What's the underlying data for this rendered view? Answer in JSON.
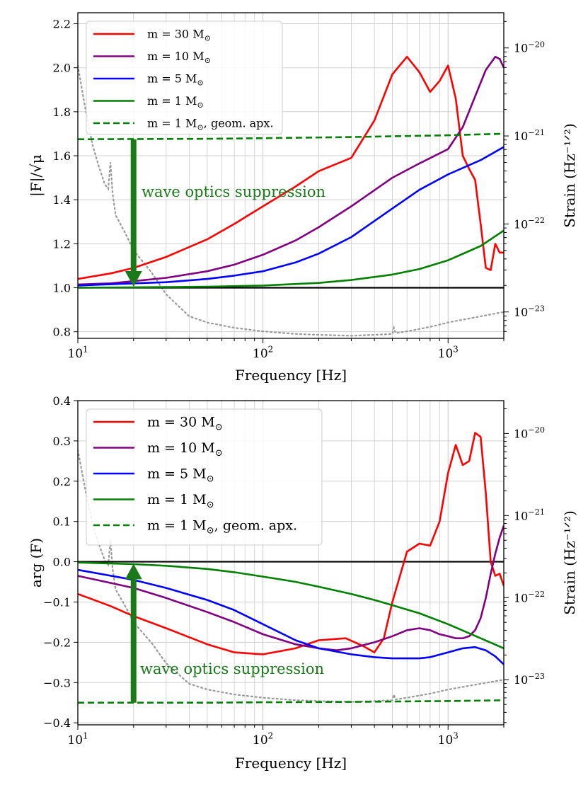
{
  "chart_data": [
    {
      "type": "line",
      "panel": "top",
      "xlabel": "Frequency [Hz]",
      "ylabel": "|F|/√μ",
      "ylabel_right": "Strain (Hz⁻¹ᐟ²)",
      "xscale": "log",
      "xlim": [
        10,
        2000
      ],
      "ylim": [
        0.77,
        2.25
      ],
      "right_ylim_log": [
        -23.3,
        -19.6
      ],
      "x_ticks": [
        {
          "v": 10,
          "base": "10",
          "exp": "1"
        },
        {
          "v": 100,
          "base": "10",
          "exp": "2"
        },
        {
          "v": 1000,
          "base": "10",
          "exp": "3"
        }
      ],
      "y_ticks": [
        {
          "v": 0.8,
          "label": "0.8"
        },
        {
          "v": 1.0,
          "label": "1.0"
        },
        {
          "v": 1.2,
          "label": "1.2"
        },
        {
          "v": 1.4,
          "label": "1.4"
        },
        {
          "v": 1.6,
          "label": "1.6"
        },
        {
          "v": 1.8,
          "label": "1.8"
        },
        {
          "v": 2.0,
          "label": "2.0"
        },
        {
          "v": 2.2,
          "label": "2.2"
        }
      ],
      "right_ticks": [
        {
          "v": -20,
          "base": "10",
          "exp": "−20"
        },
        {
          "v": -21,
          "base": "10",
          "exp": "−21"
        },
        {
          "v": -22,
          "base": "10",
          "exp": "−22"
        },
        {
          "v": -23,
          "base": "10",
          "exp": "−23"
        }
      ],
      "reference_line": 1.0,
      "legend_position": "top-left",
      "series": [
        {
          "name": "m = 30 M⊙",
          "color": "#ff0000",
          "style": "solid",
          "x": [
            10,
            15,
            20,
            30,
            50,
            70,
            100,
            150,
            200,
            300,
            400,
            500,
            600,
            700,
            800,
            900,
            1000,
            1100,
            1200,
            1300,
            1400,
            1500,
            1600,
            1700,
            1800,
            1900,
            2000
          ],
          "y": [
            1.04,
            1.065,
            1.09,
            1.14,
            1.22,
            1.29,
            1.37,
            1.46,
            1.53,
            1.59,
            1.76,
            1.97,
            2.05,
            1.98,
            1.89,
            1.94,
            2.01,
            1.86,
            1.6,
            1.54,
            1.49,
            1.29,
            1.09,
            1.08,
            1.2,
            1.16,
            1.16
          ]
        },
        {
          "name": "m = 10 M⊙",
          "color": "#800080",
          "style": "solid",
          "x": [
            10,
            15,
            20,
            30,
            50,
            70,
            100,
            150,
            200,
            300,
            500,
            700,
            1000,
            1200,
            1400,
            1600,
            1800,
            1900,
            2000
          ],
          "y": [
            1.015,
            1.02,
            1.03,
            1.045,
            1.075,
            1.105,
            1.15,
            1.215,
            1.275,
            1.37,
            1.5,
            1.565,
            1.63,
            1.73,
            1.87,
            1.99,
            2.05,
            2.04,
            2.0
          ]
        },
        {
          "name": "m = 5 M⊙",
          "color": "#0000ff",
          "style": "solid",
          "x": [
            10,
            20,
            30,
            50,
            70,
            100,
            150,
            200,
            300,
            500,
            700,
            1000,
            1500,
            2000
          ],
          "y": [
            1.01,
            1.02,
            1.025,
            1.04,
            1.055,
            1.075,
            1.115,
            1.155,
            1.23,
            1.36,
            1.445,
            1.515,
            1.58,
            1.64
          ]
        },
        {
          "name": "m = 1 M⊙",
          "color": "#008000",
          "style": "solid",
          "x": [
            10,
            30,
            50,
            100,
            200,
            300,
            500,
            700,
            1000,
            1500,
            2000
          ],
          "y": [
            1.0,
            1.003,
            1.005,
            1.01,
            1.022,
            1.035,
            1.06,
            1.085,
            1.125,
            1.19,
            1.26
          ]
        },
        {
          "name": "m = 1 M⊙, geom. apx.",
          "color": "#008000",
          "style": "dashed",
          "x": [
            10,
            50,
            100,
            300,
            1000,
            2000
          ],
          "y": [
            1.675,
            1.677,
            1.68,
            1.685,
            1.693,
            1.7
          ]
        }
      ],
      "noise_curve": {
        "x": [
          10,
          11,
          12,
          13,
          14,
          14.6,
          15,
          15.4,
          16,
          18,
          20,
          25,
          30,
          40,
          50,
          70,
          100,
          150,
          200,
          300,
          400,
          500,
          510,
          520,
          600,
          800,
          1000,
          1500,
          2000
        ],
        "log10_strain": [
          -20.2,
          -20.7,
          -21.1,
          -21.35,
          -21.55,
          -21.6,
          -21.3,
          -21.65,
          -21.9,
          -22.1,
          -22.3,
          -22.55,
          -22.8,
          -23.05,
          -23.12,
          -23.18,
          -23.22,
          -23.25,
          -23.26,
          -23.27,
          -23.26,
          -23.25,
          -23.18,
          -23.24,
          -23.22,
          -23.17,
          -23.12,
          -23.05,
          -23.0
        ]
      },
      "annotation": {
        "text": "wave optics suppression",
        "arrow_x": 20,
        "arrow_from": 1.675,
        "arrow_to": 1.005
      },
      "legend": [
        {
          "series": 0,
          "prefix": "m = 30 M",
          "suffix": ""
        },
        {
          "series": 1,
          "prefix": "m = 10 M",
          "suffix": ""
        },
        {
          "series": 2,
          "prefix": "m = 5 M",
          "suffix": ""
        },
        {
          "series": 3,
          "prefix": "m = 1 M",
          "suffix": ""
        },
        {
          "series": 4,
          "prefix": "m = 1 M",
          "suffix": ", geom. apx."
        }
      ]
    },
    {
      "type": "line",
      "panel": "bottom",
      "xlabel": "Frequency [Hz]",
      "ylabel": "arg (F)",
      "ylabel_right": "Strain (Hz⁻¹ᐟ²)",
      "xscale": "log",
      "xlim": [
        10,
        2000
      ],
      "ylim": [
        -0.405,
        0.4
      ],
      "right_ylim_log": [
        -23.55,
        -19.6
      ],
      "x_ticks": [
        {
          "v": 10,
          "base": "10",
          "exp": "1"
        },
        {
          "v": 100,
          "base": "10",
          "exp": "2"
        },
        {
          "v": 1000,
          "base": "10",
          "exp": "3"
        }
      ],
      "y_ticks": [
        {
          "v": -0.4,
          "label": "−0.4"
        },
        {
          "v": -0.3,
          "label": "−0.3"
        },
        {
          "v": -0.2,
          "label": "−0.2"
        },
        {
          "v": -0.1,
          "label": "−0.1"
        },
        {
          "v": 0.0,
          "label": "0.0"
        },
        {
          "v": 0.1,
          "label": "0.1"
        },
        {
          "v": 0.2,
          "label": "0.2"
        },
        {
          "v": 0.3,
          "label": "0.3"
        },
        {
          "v": 0.4,
          "label": "0.4"
        }
      ],
      "right_ticks": [
        {
          "v": -20,
          "base": "10",
          "exp": "−20"
        },
        {
          "v": -21,
          "base": "10",
          "exp": "−21"
        },
        {
          "v": -22,
          "base": "10",
          "exp": "−22"
        },
        {
          "v": -23,
          "base": "10",
          "exp": "−23"
        }
      ],
      "reference_line": 0.0,
      "legend_position": "top-left",
      "series": [
        {
          "name": "m = 30 M⊙",
          "color": "#ff0000",
          "style": "solid",
          "x": [
            10,
            15,
            20,
            30,
            50,
            70,
            100,
            150,
            200,
            280,
            350,
            400,
            450,
            500,
            600,
            700,
            800,
            900,
            1000,
            1100,
            1200,
            1300,
            1400,
            1500,
            1600,
            1700,
            1800,
            1900,
            2000
          ],
          "y": [
            -0.08,
            -0.11,
            -0.135,
            -0.165,
            -0.205,
            -0.225,
            -0.23,
            -0.215,
            -0.195,
            -0.19,
            -0.21,
            -0.225,
            -0.19,
            -0.1,
            0.025,
            0.045,
            0.04,
            0.1,
            0.22,
            0.29,
            0.24,
            0.25,
            0.32,
            0.31,
            0.17,
            0.0,
            -0.035,
            -0.03,
            -0.06
          ]
        },
        {
          "name": "m = 10 M⊙",
          "color": "#800080",
          "style": "solid",
          "x": [
            10,
            20,
            30,
            50,
            70,
            100,
            150,
            200,
            250,
            300,
            400,
            500,
            600,
            700,
            800,
            900,
            1000,
            1100,
            1200,
            1300,
            1400,
            1500,
            1600,
            1700,
            1800,
            1900,
            2000
          ],
          "y": [
            -0.035,
            -0.065,
            -0.09,
            -0.125,
            -0.15,
            -0.18,
            -0.205,
            -0.215,
            -0.22,
            -0.215,
            -0.2,
            -0.185,
            -0.17,
            -0.165,
            -0.17,
            -0.18,
            -0.185,
            -0.19,
            -0.19,
            -0.185,
            -0.17,
            -0.14,
            -0.09,
            -0.03,
            0.02,
            0.06,
            0.09
          ]
        },
        {
          "name": "m = 5 M⊙",
          "color": "#0000ff",
          "style": "solid",
          "x": [
            10,
            20,
            30,
            50,
            70,
            100,
            150,
            200,
            300,
            400,
            500,
            600,
            700,
            800,
            1000,
            1200,
            1400,
            1600,
            1800,
            2000
          ],
          "y": [
            -0.02,
            -0.045,
            -0.065,
            -0.095,
            -0.12,
            -0.155,
            -0.195,
            -0.215,
            -0.23,
            -0.237,
            -0.24,
            -0.24,
            -0.24,
            -0.237,
            -0.225,
            -0.215,
            -0.212,
            -0.22,
            -0.235,
            -0.255
          ]
        },
        {
          "name": "m = 1 M⊙",
          "color": "#008000",
          "style": "solid",
          "x": [
            10,
            20,
            30,
            50,
            70,
            100,
            150,
            200,
            300,
            400,
            500,
            700,
            1000,
            1500,
            2000
          ],
          "y": [
            -0.002,
            -0.006,
            -0.01,
            -0.018,
            -0.026,
            -0.037,
            -0.05,
            -0.062,
            -0.08,
            -0.095,
            -0.108,
            -0.128,
            -0.155,
            -0.19,
            -0.215
          ]
        },
        {
          "name": "m = 1 M⊙, geom. apx.",
          "color": "#008000",
          "style": "dashed",
          "x": [
            10,
            50,
            100,
            300,
            1000,
            2000
          ],
          "y": [
            -0.35,
            -0.35,
            -0.349,
            -0.348,
            -0.346,
            -0.344
          ]
        }
      ],
      "noise_curve": {
        "x": [
          10,
          11,
          12,
          13,
          14,
          14.6,
          15,
          15.4,
          16,
          18,
          20,
          25,
          30,
          40,
          50,
          70,
          100,
          150,
          200,
          300,
          400,
          500,
          510,
          520,
          600,
          800,
          1000,
          1500,
          2000
        ],
        "log10_strain": [
          -20.2,
          -20.7,
          -21.1,
          -21.35,
          -21.55,
          -21.6,
          -21.3,
          -21.65,
          -21.9,
          -22.1,
          -22.3,
          -22.55,
          -22.8,
          -23.05,
          -23.12,
          -23.18,
          -23.22,
          -23.25,
          -23.26,
          -23.27,
          -23.26,
          -23.25,
          -23.18,
          -23.24,
          -23.22,
          -23.17,
          -23.12,
          -23.05,
          -23.0
        ]
      },
      "annotation": {
        "text": "wave optics suppression",
        "arrow_x": 20,
        "arrow_from": -0.35,
        "arrow_to": -0.005
      },
      "legend": [
        {
          "series": 0,
          "prefix": "m = 30 M",
          "suffix": ""
        },
        {
          "series": 1,
          "prefix": "m = 10 M",
          "suffix": ""
        },
        {
          "series": 2,
          "prefix": "m = 5 M",
          "suffix": ""
        },
        {
          "series": 3,
          "prefix": "m = 1 M",
          "suffix": ""
        },
        {
          "series": 4,
          "prefix": "m = 1 M",
          "suffix": ", geom. apx."
        }
      ]
    }
  ]
}
